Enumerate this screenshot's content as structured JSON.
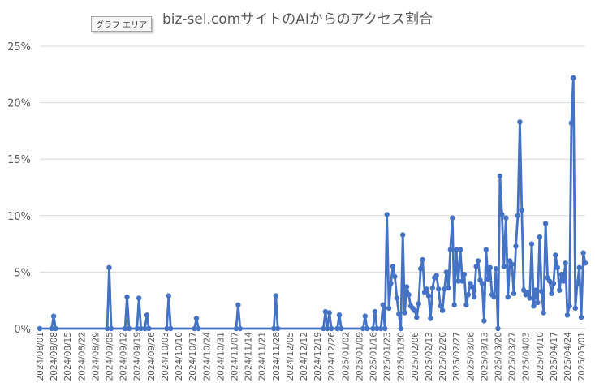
{
  "tooltip": "グラフ エリア",
  "chart_data": {
    "type": "line",
    "title": "biz-sel.comサイトのAIからのアクセス割合",
    "xlabel": "",
    "ylabel": "",
    "ylim": [
      0,
      25
    ],
    "yticks": [
      "0%",
      "5%",
      "10%",
      "15%",
      "20%",
      "25%"
    ],
    "grid": true,
    "legend": "none",
    "line_color": "#4472c4",
    "grid_color": "#d9d9d9",
    "x_tick_labels": [
      "2024/08/01",
      "2024/08/08",
      "2024/08/15",
      "2024/08/22",
      "2024/08/29",
      "2024/09/05",
      "2024/09/12",
      "2024/09/19",
      "2024/09/26",
      "2024/10/03",
      "2024/10/10",
      "2024/10/17",
      "2024/10/24",
      "2024/10/31",
      "2024/11/07",
      "2024/11/14",
      "2024/11/21",
      "2024/11/28",
      "2024/12/05",
      "2024/12/12",
      "2024/12/19",
      "2024/12/26",
      "2025/01/02",
      "2025/01/09",
      "2025/01/16",
      "2025/01/23",
      "2025/01/30",
      "2025/02/06",
      "2025/02/13",
      "2025/02/20",
      "2025/02/27",
      "2025/03/06",
      "2025/03/13",
      "2025/03/20",
      "2025/03/27",
      "2025/04/03",
      "2025/04/10",
      "2025/04/17",
      "2025/04/24",
      "2025/05/01"
    ],
    "x_start": "2024/08/01",
    "x_end": "2025/05/03",
    "points": [
      [
        "2024/08/01",
        0
      ],
      [
        "2024/08/07",
        0
      ],
      [
        "2024/08/08",
        1.1
      ],
      [
        "2024/08/09",
        0
      ],
      [
        "2024/09/04",
        0
      ],
      [
        "2024/09/05",
        5.4
      ],
      [
        "2024/09/06",
        0
      ],
      [
        "2024/09/13",
        0
      ],
      [
        "2024/09/14",
        2.8
      ],
      [
        "2024/09/15",
        0
      ],
      [
        "2024/09/19",
        0
      ],
      [
        "2024/09/20",
        2.7
      ],
      [
        "2024/09/21",
        0
      ],
      [
        "2024/09/23",
        0
      ],
      [
        "2024/09/24",
        1.2
      ],
      [
        "2024/09/25",
        0
      ],
      [
        "2024/10/04",
        0
      ],
      [
        "2024/10/05",
        2.9
      ],
      [
        "2024/10/06",
        0
      ],
      [
        "2024/10/18",
        0
      ],
      [
        "2024/10/19",
        0.9
      ],
      [
        "2024/10/20",
        0
      ],
      [
        "2024/11/08",
        0
      ],
      [
        "2024/11/09",
        2.1
      ],
      [
        "2024/11/10",
        0
      ],
      [
        "2024/11/27",
        0
      ],
      [
        "2024/11/28",
        2.9
      ],
      [
        "2024/11/29",
        0
      ],
      [
        "2024/12/22",
        0
      ],
      [
        "2024/12/23",
        1.5
      ],
      [
        "2024/12/24",
        0
      ],
      [
        "2024/12/25",
        1.4
      ],
      [
        "2024/12/26",
        0
      ],
      [
        "2024/12/29",
        0
      ],
      [
        "2024/12/30",
        1.2
      ],
      [
        "2024/12/31",
        0
      ],
      [
        "2025/01/11",
        0
      ],
      [
        "2025/01/12",
        1.1
      ],
      [
        "2025/01/13",
        0
      ],
      [
        "2025/01/16",
        0
      ],
      [
        "2025/01/17",
        1.5
      ],
      [
        "2025/01/18",
        0
      ],
      [
        "2025/01/20",
        0
      ],
      [
        "2025/01/21",
        2.1
      ],
      [
        "2025/01/22",
        0
      ],
      [
        "2025/01/23",
        10.1
      ],
      [
        "2025/01/24",
        1.8
      ],
      [
        "2025/01/25",
        4.0
      ],
      [
        "2025/01/26",
        5.5
      ],
      [
        "2025/01/27",
        4.6
      ],
      [
        "2025/01/28",
        2.7
      ],
      [
        "2025/01/29",
        1.3
      ],
      [
        "2025/01/30",
        0
      ],
      [
        "2025/01/31",
        8.3
      ],
      [
        "2025/02/01",
        1.4
      ],
      [
        "2025/02/02",
        3.7
      ],
      [
        "2025/02/03",
        3.0
      ],
      [
        "2025/02/04",
        2.0
      ],
      [
        "2025/02/05",
        1.8
      ],
      [
        "2025/02/06",
        1.6
      ],
      [
        "2025/02/07",
        1.0
      ],
      [
        "2025/02/08",
        2.2
      ],
      [
        "2025/02/09",
        5.3
      ],
      [
        "2025/02/10",
        6.1
      ],
      [
        "2025/02/11",
        3.2
      ],
      [
        "2025/02/12",
        3.5
      ],
      [
        "2025/02/13",
        2.9
      ],
      [
        "2025/02/14",
        0.9
      ],
      [
        "2025/02/15",
        3.6
      ],
      [
        "2025/02/16",
        4.5
      ],
      [
        "2025/02/17",
        4.7
      ],
      [
        "2025/02/18",
        3.5
      ],
      [
        "2025/02/19",
        2.0
      ],
      [
        "2025/02/20",
        1.6
      ],
      [
        "2025/02/21",
        3.5
      ],
      [
        "2025/02/22",
        5.0
      ],
      [
        "2025/02/23",
        3.6
      ],
      [
        "2025/02/24",
        7.0
      ],
      [
        "2025/02/25",
        9.8
      ],
      [
        "2025/02/26",
        2.1
      ],
      [
        "2025/02/27",
        7.0
      ],
      [
        "2025/02/28",
        4.2
      ],
      [
        "2025/03/01",
        7.0
      ],
      [
        "2025/03/02",
        4.2
      ],
      [
        "2025/03/03",
        4.8
      ],
      [
        "2025/03/04",
        2.1
      ],
      [
        "2025/03/05",
        3.0
      ],
      [
        "2025/03/06",
        4.0
      ],
      [
        "2025/03/07",
        3.7
      ],
      [
        "2025/03/08",
        2.8
      ],
      [
        "2025/03/09",
        5.5
      ],
      [
        "2025/03/10",
        6.0
      ],
      [
        "2025/03/11",
        4.3
      ],
      [
        "2025/03/12",
        4.0
      ],
      [
        "2025/03/13",
        0.7
      ],
      [
        "2025/03/14",
        7.0
      ],
      [
        "2025/03/15",
        4.4
      ],
      [
        "2025/03/16",
        5.4
      ],
      [
        "2025/03/17",
        3.0
      ],
      [
        "2025/03/18",
        2.8
      ],
      [
        "2025/03/19",
        5.3
      ],
      [
        "2025/03/20",
        0
      ],
      [
        "2025/03/21",
        13.5
      ],
      [
        "2025/03/22",
        10.1
      ],
      [
        "2025/03/23",
        5.5
      ],
      [
        "2025/03/24",
        9.8
      ],
      [
        "2025/03/25",
        2.8
      ],
      [
        "2025/03/26",
        6.0
      ],
      [
        "2025/03/27",
        5.7
      ],
      [
        "2025/03/28",
        3.1
      ],
      [
        "2025/03/29",
        7.3
      ],
      [
        "2025/03/30",
        10.0
      ],
      [
        "2025/03/31",
        18.3
      ],
      [
        "2025/04/01",
        10.5
      ],
      [
        "2025/04/02",
        3.4
      ],
      [
        "2025/04/03",
        3.0
      ],
      [
        "2025/04/04",
        3.2
      ],
      [
        "2025/04/05",
        2.7
      ],
      [
        "2025/04/06",
        7.5
      ],
      [
        "2025/04/07",
        2.0
      ],
      [
        "2025/04/08",
        3.4
      ],
      [
        "2025/04/09",
        2.3
      ],
      [
        "2025/04/10",
        8.1
      ],
      [
        "2025/04/11",
        3.3
      ],
      [
        "2025/04/12",
        1.4
      ],
      [
        "2025/04/13",
        9.3
      ],
      [
        "2025/04/14",
        4.5
      ],
      [
        "2025/04/15",
        4.2
      ],
      [
        "2025/04/16",
        3.1
      ],
      [
        "2025/04/17",
        4.0
      ],
      [
        "2025/04/18",
        6.5
      ],
      [
        "2025/04/19",
        5.4
      ],
      [
        "2025/04/20",
        3.4
      ],
      [
        "2025/04/21",
        4.8
      ],
      [
        "2025/04/22",
        4.2
      ],
      [
        "2025/04/23",
        5.8
      ],
      [
        "2025/04/24",
        1.2
      ],
      [
        "2025/04/25",
        2.0
      ],
      [
        "2025/04/26",
        18.2
      ],
      [
        "2025/04/27",
        22.2
      ],
      [
        "2025/04/28",
        1.8
      ],
      [
        "2025/04/29",
        4.0
      ],
      [
        "2025/04/30",
        5.4
      ],
      [
        "2025/05/01",
        1.0
      ],
      [
        "2025/05/02",
        6.7
      ],
      [
        "2025/05/03",
        5.8
      ]
    ]
  }
}
